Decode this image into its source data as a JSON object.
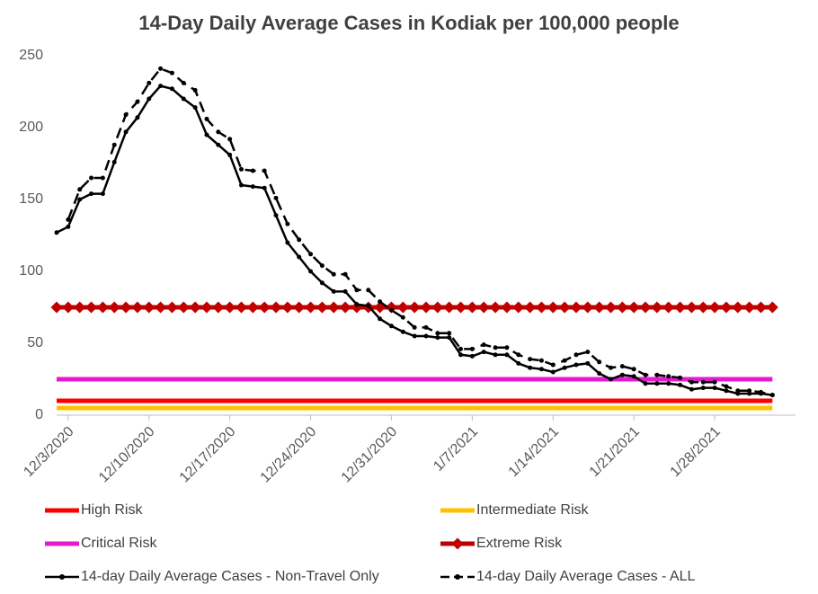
{
  "chart_data": {
    "type": "line",
    "title": "14-Day Daily Average Cases in Kodiak per 100,000 people",
    "x": [
      "2020-12-02",
      "2020-12-03",
      "2020-12-04",
      "2020-12-05",
      "2020-12-06",
      "2020-12-07",
      "2020-12-08",
      "2020-12-09",
      "2020-12-10",
      "2020-12-11",
      "2020-12-12",
      "2020-12-13",
      "2020-12-14",
      "2020-12-15",
      "2020-12-16",
      "2020-12-17",
      "2020-12-18",
      "2020-12-19",
      "2020-12-20",
      "2020-12-21",
      "2020-12-22",
      "2020-12-23",
      "2020-12-24",
      "2020-12-25",
      "2020-12-26",
      "2020-12-27",
      "2020-12-28",
      "2020-12-29",
      "2020-12-30",
      "2020-12-31",
      "2021-01-01",
      "2021-01-02",
      "2021-01-03",
      "2021-01-04",
      "2021-01-05",
      "2021-01-06",
      "2021-01-07",
      "2021-01-08",
      "2021-01-09",
      "2021-01-10",
      "2021-01-11",
      "2021-01-12",
      "2021-01-13",
      "2021-01-14",
      "2021-01-15",
      "2021-01-16",
      "2021-01-17",
      "2021-01-18",
      "2021-01-19",
      "2021-01-20",
      "2021-01-21",
      "2021-01-22",
      "2021-01-23",
      "2021-01-24",
      "2021-01-25",
      "2021-01-26",
      "2021-01-27",
      "2021-01-28",
      "2021-01-29",
      "2021-01-30",
      "2021-01-31",
      "2021-02-01",
      "2021-02-02"
    ],
    "xlim": [
      "2020-12-02",
      "2021-02-04"
    ],
    "xticks": [
      {
        "value": "2020-12-03",
        "label": "12/3/2020"
      },
      {
        "value": "2020-12-10",
        "label": "12/10/2020"
      },
      {
        "value": "2020-12-17",
        "label": "12/17/2020"
      },
      {
        "value": "2020-12-24",
        "label": "12/24/2020"
      },
      {
        "value": "2020-12-31",
        "label": "12/31/2020"
      },
      {
        "value": "2021-01-07",
        "label": "1/7/2021"
      },
      {
        "value": "2021-01-14",
        "label": "1/14/2021"
      },
      {
        "value": "2021-01-21",
        "label": "1/21/2021"
      },
      {
        "value": "2021-01-28",
        "label": "1/28/2021"
      }
    ],
    "ylim": [
      0,
      250
    ],
    "yticks": [
      0,
      50,
      100,
      150,
      200,
      250
    ],
    "grid": false,
    "series": [
      {
        "name": "High Risk",
        "color": "#ff0000",
        "marker": "none",
        "dashed": false,
        "values": [
          10,
          10,
          10,
          10,
          10,
          10,
          10,
          10,
          10,
          10,
          10,
          10,
          10,
          10,
          10,
          10,
          10,
          10,
          10,
          10,
          10,
          10,
          10,
          10,
          10,
          10,
          10,
          10,
          10,
          10,
          10,
          10,
          10,
          10,
          10,
          10,
          10,
          10,
          10,
          10,
          10,
          10,
          10,
          10,
          10,
          10,
          10,
          10,
          10,
          10,
          10,
          10,
          10,
          10,
          10,
          10,
          10,
          10,
          10,
          10,
          10,
          10,
          10
        ]
      },
      {
        "name": "Intermediate Risk",
        "color": "#ffc000",
        "marker": "none",
        "dashed": false,
        "values": [
          5,
          5,
          5,
          5,
          5,
          5,
          5,
          5,
          5,
          5,
          5,
          5,
          5,
          5,
          5,
          5,
          5,
          5,
          5,
          5,
          5,
          5,
          5,
          5,
          5,
          5,
          5,
          5,
          5,
          5,
          5,
          5,
          5,
          5,
          5,
          5,
          5,
          5,
          5,
          5,
          5,
          5,
          5,
          5,
          5,
          5,
          5,
          5,
          5,
          5,
          5,
          5,
          5,
          5,
          5,
          5,
          5,
          5,
          5,
          5,
          5,
          5,
          5
        ]
      },
      {
        "name": "Critical Risk",
        "color": "#e619d0",
        "marker": "none",
        "dashed": false,
        "values": [
          25,
          25,
          25,
          25,
          25,
          25,
          25,
          25,
          25,
          25,
          25,
          25,
          25,
          25,
          25,
          25,
          25,
          25,
          25,
          25,
          25,
          25,
          25,
          25,
          25,
          25,
          25,
          25,
          25,
          25,
          25,
          25,
          25,
          25,
          25,
          25,
          25,
          25,
          25,
          25,
          25,
          25,
          25,
          25,
          25,
          25,
          25,
          25,
          25,
          25,
          25,
          25,
          25,
          25,
          25,
          25,
          25,
          25,
          25,
          25,
          25,
          25,
          25
        ]
      },
      {
        "name": "Extreme Risk",
        "color": "#c00000",
        "marker": "diamond",
        "dashed": false,
        "values": [
          75,
          75,
          75,
          75,
          75,
          75,
          75,
          75,
          75,
          75,
          75,
          75,
          75,
          75,
          75,
          75,
          75,
          75,
          75,
          75,
          75,
          75,
          75,
          75,
          75,
          75,
          75,
          75,
          75,
          75,
          75,
          75,
          75,
          75,
          75,
          75,
          75,
          75,
          75,
          75,
          75,
          75,
          75,
          75,
          75,
          75,
          75,
          75,
          75,
          75,
          75,
          75,
          75,
          75,
          75,
          75,
          75,
          75,
          75,
          75,
          75,
          75,
          75
        ]
      },
      {
        "name": "14-day Daily Average Cases - Non-Travel Only",
        "color": "#000000",
        "marker": "circle",
        "dashed": false,
        "values": [
          127,
          131,
          150,
          154,
          154,
          176,
          197,
          207,
          220,
          229,
          227,
          220,
          214,
          195,
          188,
          181,
          160,
          159,
          158,
          139,
          120,
          110,
          100,
          92,
          86,
          86,
          77,
          76,
          67,
          62,
          58,
          55,
          55,
          54,
          54,
          42,
          41,
          44,
          42,
          42,
          36,
          33,
          32,
          30,
          33,
          35,
          36,
          29,
          25,
          28,
          27,
          22,
          22,
          22,
          21,
          18,
          19,
          19,
          17,
          15,
          15,
          15,
          14
        ]
      },
      {
        "name": "14-day Daily Average Cases - ALL",
        "color": "#000000",
        "marker": "circle",
        "dashed": true,
        "values": [
          null,
          136,
          157,
          165,
          165,
          188,
          209,
          218,
          231,
          241,
          238,
          231,
          226,
          206,
          197,
          192,
          171,
          170,
          170,
          151,
          133,
          122,
          112,
          104,
          98,
          98,
          87,
          87,
          79,
          73,
          68,
          61,
          61,
          57,
          57,
          46,
          46,
          49,
          47,
          47,
          42,
          39,
          38,
          35,
          38,
          42,
          44,
          37,
          33,
          34,
          32,
          28,
          28,
          27,
          26,
          23,
          23,
          23,
          20,
          17,
          17,
          16,
          14
        ]
      }
    ]
  }
}
